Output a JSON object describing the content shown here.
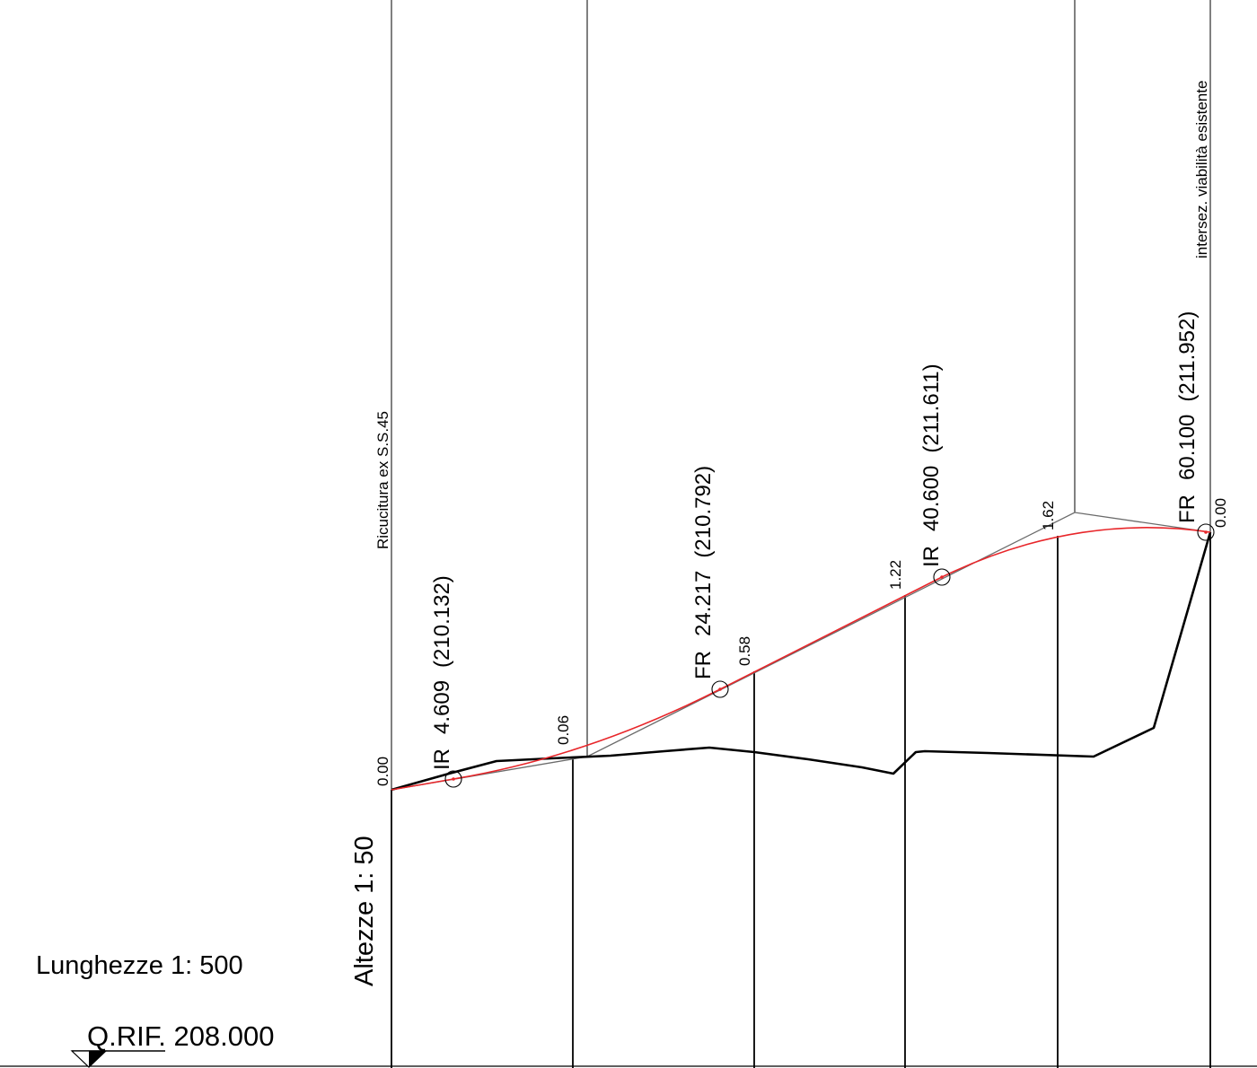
{
  "scales": {
    "lunghezze": "Lunghezze 1: 500",
    "altezze": "Altezze 1: 50"
  },
  "reference": {
    "label": "Q.RIF. 208.000"
  },
  "annotations": {
    "start_note": "Ricucitura ex S.S.45",
    "end_note": "intersez. viabilità esistente"
  },
  "vertical_curve_points": [
    {
      "type": "IR",
      "progressive": "4.609",
      "elevation": "(210.132)"
    },
    {
      "type": "FR",
      "progressive": "24.217",
      "elevation": "(210.792)"
    },
    {
      "type": "IR",
      "progressive": "40.600",
      "elevation": "(211.611)"
    },
    {
      "type": "FR",
      "progressive": "60.100",
      "elevation": "(211.952)"
    }
  ],
  "fill_heights": [
    {
      "value": "0.00"
    },
    {
      "value": "0.06"
    },
    {
      "value": "0.58"
    },
    {
      "value": "1.22"
    },
    {
      "value": "1.62"
    },
    {
      "value": "0.00"
    }
  ],
  "colors": {
    "design_profile": "#e8262a",
    "ground_profile": "#000000",
    "tangent_polyline": "#6b6b6b",
    "grid": "#000000"
  }
}
